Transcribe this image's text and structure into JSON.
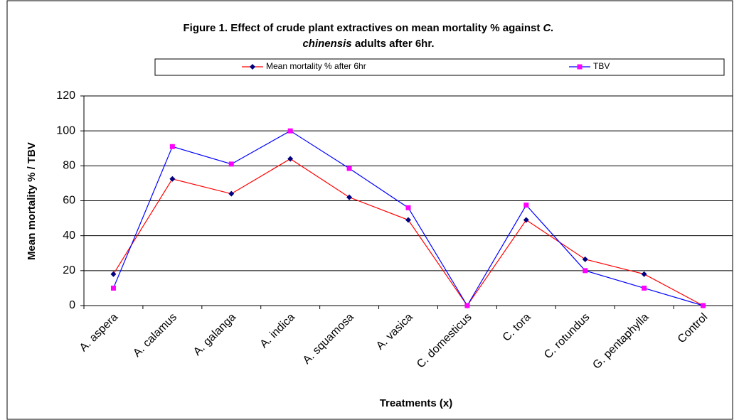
{
  "chart_data": {
    "type": "line",
    "title": {
      "line1": "Figure 1.  Effect of crude plant extractives on mean mortality % against ",
      "line1_italic": "C.",
      "line2_italic": "chinensis",
      "line2": " adults after 6hr."
    },
    "xlabel": "Treatments (x)",
    "ylabel": "Mean mortality % / TBV",
    "categories": [
      "A. aspera",
      "A. calamus",
      "A. galanga",
      "A. indica",
      "A. squamosa",
      "A. vasica",
      "C. domesticus",
      "C. tora",
      "C. rotundus",
      "G. pentaphylla",
      "Control"
    ],
    "series": [
      {
        "name": "Mean mortality % after 6hr",
        "color": "#ff0000",
        "marker": "diamond",
        "marker_color": "#000080",
        "values": [
          18,
          72.5,
          64,
          84,
          62,
          49,
          0,
          49,
          26.5,
          18,
          0
        ]
      },
      {
        "name": "TBV",
        "color": "#0000ff",
        "marker": "square",
        "marker_color": "#ff00ff",
        "values": [
          10,
          91,
          81,
          100,
          78.5,
          56,
          0,
          57.5,
          20,
          10,
          0
        ]
      }
    ],
    "ylim": [
      0,
      120
    ],
    "yticks": [
      0,
      20,
      40,
      60,
      80,
      100,
      120
    ],
    "grid": true,
    "legend": "top"
  }
}
